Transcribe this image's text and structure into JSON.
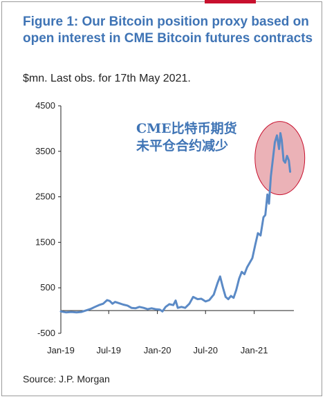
{
  "header": {
    "title": "Figure 1: Our Bitcoin position proxy based on open interest in CME Bitcoin futures contracts",
    "subtitle": "$mn. Last obs. for 17th May 2021."
  },
  "footer": {
    "source": "Source: J.P. Morgan"
  },
  "colors": {
    "title": "#3f74b5",
    "line": "#5b8ac6",
    "accent": "#c8102e",
    "highlight_fill": "#e8a4aa"
  },
  "chart_data": {
    "type": "line",
    "title": "Figure 1: Our Bitcoin position proxy based on open interest in CME Bitcoin futures contracts",
    "subtitle": "$mn. Last obs. for 17th May 2021.",
    "xlabel": "",
    "ylabel": "",
    "ylim": [
      -500,
      4500
    ],
    "yticks": [
      -500,
      500,
      1500,
      2500,
      3500,
      4500
    ],
    "xlim": [
      "2019-01-01",
      "2021-05-31"
    ],
    "xticks": [
      "Jan-19",
      "Jul-19",
      "Jan-20",
      "Jul-20",
      "Jan-21"
    ],
    "grid": false,
    "annotations": [
      "CME比特币期货",
      "未平仓合约减少"
    ],
    "series": [
      {
        "values": [
          [
            "2019-01-01",
            -20
          ],
          [
            "2019-01-20",
            -40
          ],
          [
            "2019-02-10",
            -30
          ],
          [
            "2019-03-01",
            -40
          ],
          [
            "2019-03-20",
            -30
          ],
          [
            "2019-04-10",
            10
          ],
          [
            "2019-04-25",
            40
          ],
          [
            "2019-05-10",
            80
          ],
          [
            "2019-05-25",
            120
          ],
          [
            "2019-06-10",
            150
          ],
          [
            "2019-06-25",
            230
          ],
          [
            "2019-07-05",
            210
          ],
          [
            "2019-07-15",
            150
          ],
          [
            "2019-07-25",
            190
          ],
          [
            "2019-08-10",
            160
          ],
          [
            "2019-08-25",
            130
          ],
          [
            "2019-09-10",
            110
          ],
          [
            "2019-09-25",
            60
          ],
          [
            "2019-10-10",
            50
          ],
          [
            "2019-10-25",
            80
          ],
          [
            "2019-11-10",
            60
          ],
          [
            "2019-11-25",
            30
          ],
          [
            "2019-12-10",
            50
          ],
          [
            "2019-12-25",
            30
          ],
          [
            "2020-01-10",
            20
          ],
          [
            "2020-01-20",
            -20
          ],
          [
            "2020-02-01",
            80
          ],
          [
            "2020-02-15",
            140
          ],
          [
            "2020-03-01",
            120
          ],
          [
            "2020-03-10",
            220
          ],
          [
            "2020-03-18",
            60
          ],
          [
            "2020-04-01",
            80
          ],
          [
            "2020-04-15",
            60
          ],
          [
            "2020-05-01",
            150
          ],
          [
            "2020-05-15",
            300
          ],
          [
            "2020-06-01",
            250
          ],
          [
            "2020-06-15",
            260
          ],
          [
            "2020-07-01",
            200
          ],
          [
            "2020-07-15",
            230
          ],
          [
            "2020-08-01",
            350
          ],
          [
            "2020-08-15",
            600
          ],
          [
            "2020-08-25",
            750
          ],
          [
            "2020-09-05",
            500
          ],
          [
            "2020-09-15",
            300
          ],
          [
            "2020-09-25",
            250
          ],
          [
            "2020-10-05",
            320
          ],
          [
            "2020-10-15",
            280
          ],
          [
            "2020-10-25",
            450
          ],
          [
            "2020-11-05",
            700
          ],
          [
            "2020-11-15",
            850
          ],
          [
            "2020-11-25",
            800
          ],
          [
            "2020-12-05",
            950
          ],
          [
            "2020-12-15",
            1050
          ],
          [
            "2020-12-25",
            1150
          ],
          [
            "2021-01-05",
            1450
          ],
          [
            "2021-01-15",
            1700
          ],
          [
            "2021-01-25",
            1650
          ],
          [
            "2021-02-05",
            2050
          ],
          [
            "2021-02-12",
            2100
          ],
          [
            "2021-02-20",
            2550
          ],
          [
            "2021-02-26",
            2350
          ],
          [
            "2021-03-05",
            2950
          ],
          [
            "2021-03-12",
            3300
          ],
          [
            "2021-03-20",
            3700
          ],
          [
            "2021-03-28",
            3850
          ],
          [
            "2021-04-05",
            3550
          ],
          [
            "2021-04-10",
            3900
          ],
          [
            "2021-04-15",
            3750
          ],
          [
            "2021-04-22",
            3300
          ],
          [
            "2021-04-28",
            3250
          ],
          [
            "2021-05-05",
            3400
          ],
          [
            "2021-05-12",
            3300
          ],
          [
            "2021-05-17",
            3050
          ]
        ]
      }
    ]
  }
}
